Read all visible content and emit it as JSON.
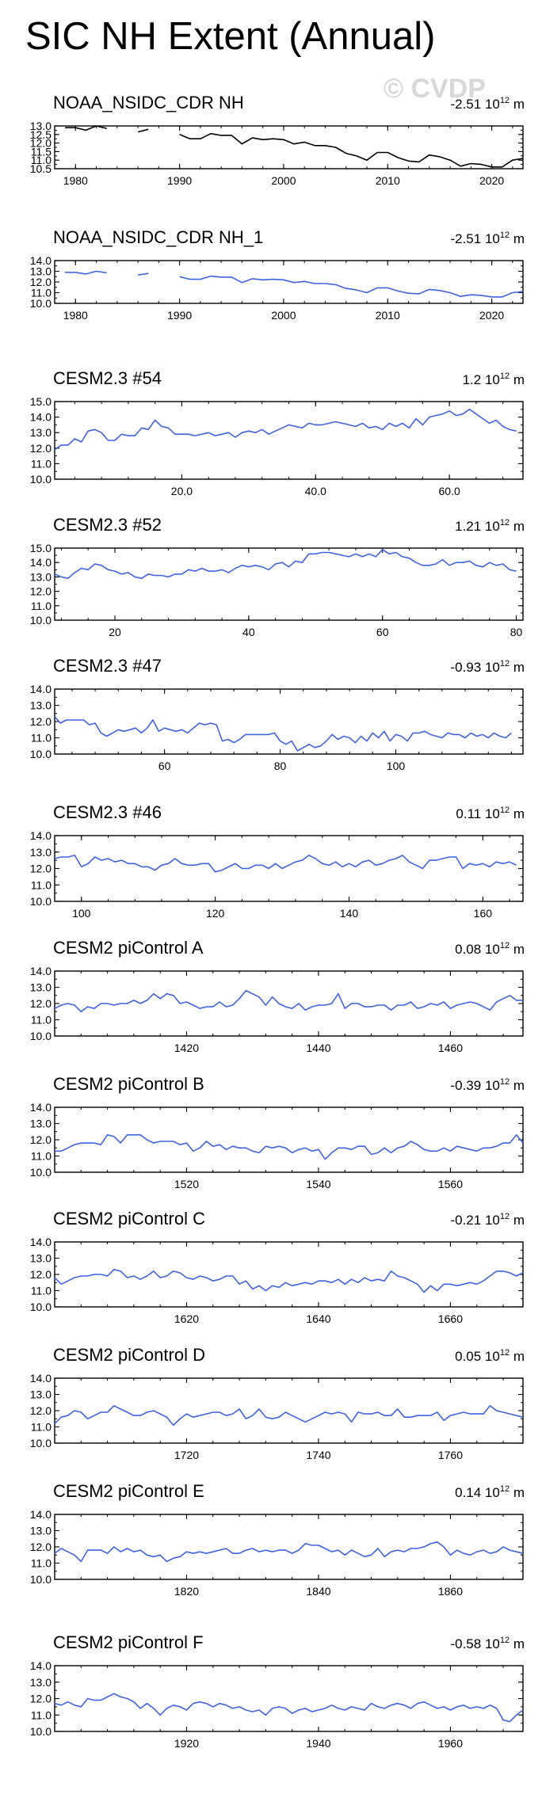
{
  "page": {
    "title": "SIC NH Extent (Annual)",
    "watermark": "© CVDP"
  },
  "chart_data": [
    {
      "type": "line",
      "title": "NOAA_NSIDC_CDR NH",
      "trend": "-2.51",
      "trend_units": "10^12 m^2",
      "color": "#000000",
      "xlim": [
        1978,
        2023
      ],
      "ylim": [
        10.5,
        13.0
      ],
      "yticks": [
        10.5,
        11.0,
        11.5,
        12.0,
        12.5,
        13.0
      ],
      "ytick_labels": [
        "10.5",
        "11.0",
        "11.5",
        "12.0",
        "12.5",
        "13.0"
      ],
      "xticks": [
        1980,
        1990,
        2000,
        2010,
        2020
      ],
      "xtick_labels": [
        "1980",
        "1990",
        "2000",
        "2010",
        "2020"
      ],
      "x_start": 1979,
      "values": [
        12.9,
        12.9,
        12.75,
        13.0,
        12.85,
        null,
        null,
        12.65,
        12.8,
        null,
        null,
        12.5,
        12.25,
        12.25,
        12.55,
        12.45,
        12.45,
        11.95,
        12.3,
        12.2,
        12.25,
        12.2,
        11.95,
        12.05,
        11.85,
        11.85,
        11.75,
        11.4,
        11.25,
        11.0,
        11.45,
        11.45,
        11.15,
        10.95,
        10.9,
        11.3,
        11.2,
        11.0,
        10.65,
        10.8,
        10.75,
        10.6,
        10.6,
        11.0,
        11.1
      ]
    },
    {
      "type": "line",
      "title": "NOAA_NSIDC_CDR NH_1",
      "trend": "-2.51",
      "trend_units": "10^12 m^2",
      "color": "#3f63e0",
      "xlim": [
        1978,
        2023
      ],
      "ylim": [
        10.0,
        14.0
      ],
      "yticks": [
        10.0,
        11.0,
        12.0,
        13.0,
        14.0
      ],
      "ytick_labels": [
        "10.0",
        "11.0",
        "12.0",
        "13.0",
        "14.0"
      ],
      "xticks": [
        1980,
        1990,
        2000,
        2010,
        2020
      ],
      "xtick_labels": [
        "1980",
        "1990",
        "2000",
        "2010",
        "2020"
      ],
      "x_start": 1979,
      "values": [
        12.9,
        12.9,
        12.75,
        13.0,
        12.85,
        null,
        null,
        12.65,
        12.8,
        null,
        null,
        12.5,
        12.25,
        12.25,
        12.55,
        12.45,
        12.45,
        11.95,
        12.3,
        12.2,
        12.25,
        12.2,
        11.95,
        12.05,
        11.85,
        11.85,
        11.75,
        11.4,
        11.25,
        11.0,
        11.45,
        11.45,
        11.15,
        10.95,
        10.9,
        11.3,
        11.2,
        11.0,
        10.65,
        10.8,
        10.75,
        10.6,
        10.6,
        11.0,
        11.1
      ]
    },
    {
      "type": "line",
      "title": "CESM2.3 #54",
      "trend": "1.2",
      "trend_units": "10^12 m^2",
      "color": "#3f63e0",
      "xlim": [
        1,
        71
      ],
      "ylim": [
        10.0,
        15.0
      ],
      "yticks": [
        10.0,
        11.0,
        12.0,
        13.0,
        14.0,
        15.0
      ],
      "ytick_labels": [
        "10.0",
        "11.0",
        "12.0",
        "13.0",
        "14.0",
        "15.0"
      ],
      "xticks": [
        20,
        40,
        60
      ],
      "xtick_labels": [
        "20.0",
        "40.0",
        "60.0"
      ],
      "x_start": 1,
      "values": [
        11.9,
        12.2,
        12.2,
        12.6,
        12.4,
        13.1,
        13.2,
        13.0,
        12.5,
        12.5,
        12.9,
        12.8,
        12.8,
        13.3,
        13.2,
        13.8,
        13.4,
        13.3,
        12.9,
        12.9,
        12.9,
        12.8,
        12.9,
        13.0,
        12.8,
        12.9,
        13.0,
        12.7,
        13.0,
        13.1,
        13.0,
        13.2,
        12.9,
        13.1,
        13.3,
        13.5,
        13.4,
        13.3,
        13.6,
        13.5,
        13.5,
        13.6,
        13.7,
        13.6,
        13.5,
        13.4,
        13.6,
        13.3,
        13.4,
        13.2,
        13.6,
        13.4,
        13.6,
        13.3,
        13.9,
        13.5,
        14.0,
        14.1,
        14.2,
        14.4,
        14.1,
        14.2,
        14.5,
        14.2,
        13.9,
        13.6,
        13.8,
        13.4,
        13.2,
        13.1
      ]
    },
    {
      "type": "line",
      "title": "CESM2.3 #52",
      "trend": "1.21",
      "trend_units": "10^12 m^2",
      "color": "#3f63e0",
      "xlim": [
        11,
        81
      ],
      "ylim": [
        10.0,
        15.0
      ],
      "yticks": [
        10.0,
        11.0,
        12.0,
        13.0,
        14.0,
        15.0
      ],
      "ytick_labels": [
        "10.0",
        "11.0",
        "12.0",
        "13.0",
        "14.0",
        "15.0"
      ],
      "xticks": [
        20,
        40,
        60,
        80
      ],
      "xtick_labels": [
        "20",
        "40",
        "60",
        "80"
      ],
      "x_start": 11,
      "values": [
        13.2,
        13.0,
        12.9,
        13.3,
        13.6,
        13.5,
        13.9,
        13.8,
        13.5,
        13.4,
        13.2,
        13.3,
        13.0,
        12.9,
        13.2,
        13.1,
        13.1,
        13.0,
        13.2,
        13.2,
        13.5,
        13.4,
        13.6,
        13.4,
        13.4,
        13.5,
        13.3,
        13.6,
        13.8,
        13.7,
        13.8,
        13.7,
        13.5,
        13.9,
        14.0,
        13.7,
        14.1,
        14.0,
        14.6,
        14.6,
        14.7,
        14.7,
        14.6,
        14.5,
        14.4,
        14.6,
        14.4,
        14.6,
        14.4,
        14.9,
        14.6,
        14.7,
        14.4,
        14.3,
        14.0,
        13.8,
        13.8,
        13.9,
        14.2,
        13.8,
        14.0,
        14.0,
        14.1,
        13.8,
        13.7,
        14.0,
        13.8,
        13.9,
        13.5,
        13.4
      ]
    },
    {
      "type": "line",
      "title": "CESM2.3 #47",
      "trend": "-0.93",
      "trend_units": "10^12 m^2",
      "color": "#3f63e0",
      "xlim": [
        41,
        122
      ],
      "ylim": [
        10.0,
        14.0
      ],
      "yticks": [
        10.0,
        11.0,
        12.0,
        13.0,
        14.0
      ],
      "ytick_labels": [
        "10.0",
        "11.0",
        "12.0",
        "13.0",
        "14.0"
      ],
      "xticks": [
        60,
        80,
        100
      ],
      "xtick_labels": [
        "60",
        "80",
        "100"
      ],
      "x_start": 41,
      "values": [
        12.3,
        11.9,
        12.1,
        12.1,
        12.1,
        12.1,
        11.8,
        11.9,
        11.3,
        11.1,
        11.3,
        11.5,
        11.4,
        11.5,
        11.6,
        11.3,
        11.6,
        12.1,
        11.4,
        11.6,
        11.5,
        11.4,
        11.5,
        11.3,
        11.6,
        11.9,
        11.8,
        11.9,
        11.8,
        10.8,
        10.9,
        10.7,
        10.9,
        11.2,
        11.2,
        11.2,
        11.2,
        11.2,
        11.3,
        10.8,
        10.6,
        10.8,
        10.2,
        10.4,
        10.6,
        10.4,
        10.5,
        10.8,
        11.2,
        10.9,
        11.1,
        11.0,
        10.7,
        11.1,
        10.8,
        11.3,
        11.0,
        11.4,
        10.8,
        11.2,
        11.1,
        10.8,
        11.3,
        11.3,
        11.4,
        11.2,
        11.1,
        11.0,
        11.3,
        11.2,
        11.2,
        11.0,
        11.3,
        11.1,
        11.2,
        11.0,
        11.3,
        11.1,
        11.0,
        11.3
      ]
    },
    {
      "type": "line",
      "title": "CESM2.3 #46",
      "trend": "0.11",
      "trend_units": "10^12 m^2",
      "color": "#3f63e0",
      "xlim": [
        96,
        166
      ],
      "ylim": [
        10.0,
        14.0
      ],
      "yticks": [
        10.0,
        11.0,
        12.0,
        13.0,
        14.0
      ],
      "ytick_labels": [
        "10.0",
        "11.0",
        "12.0",
        "13.0",
        "14.0"
      ],
      "xticks": [
        100,
        120,
        140,
        160
      ],
      "xtick_labels": [
        "100",
        "120",
        "140",
        "160"
      ],
      "x_start": 96,
      "values": [
        12.6,
        12.7,
        12.7,
        12.8,
        12.1,
        12.3,
        12.7,
        12.5,
        12.6,
        12.4,
        12.5,
        12.3,
        12.3,
        12.1,
        12.1,
        11.9,
        12.2,
        12.3,
        12.6,
        12.3,
        12.2,
        12.2,
        12.3,
        12.3,
        11.8,
        11.9,
        12.1,
        12.3,
        12.0,
        12.0,
        12.2,
        12.2,
        12.0,
        12.3,
        12.0,
        12.2,
        12.4,
        12.5,
        12.8,
        12.6,
        12.3,
        12.2,
        12.4,
        12.1,
        12.3,
        12.1,
        12.4,
        12.5,
        12.2,
        12.3,
        12.5,
        12.6,
        12.8,
        12.4,
        12.2,
        12.0,
        12.5,
        12.5,
        12.6,
        12.7,
        12.7,
        12.0,
        12.3,
        12.2,
        12.3,
        12.1,
        12.4,
        12.3,
        12.4,
        12.2
      ]
    },
    {
      "type": "line",
      "title": "CESM2 piControl A",
      "trend": "0.08",
      "trend_units": "10^12 m^2",
      "color": "#3f63e0",
      "xlim": [
        1400,
        1471
      ],
      "ylim": [
        10.0,
        14.0
      ],
      "yticks": [
        10.0,
        11.0,
        12.0,
        13.0,
        14.0
      ],
      "ytick_labels": [
        "10.0",
        "11.0",
        "12.0",
        "13.0",
        "14.0"
      ],
      "xticks": [
        1420,
        1440,
        1460
      ],
      "xtick_labels": [
        "1420",
        "1440",
        "1460"
      ],
      "x_start": 1400,
      "values": [
        11.7,
        11.9,
        12.0,
        11.9,
        11.5,
        11.8,
        11.7,
        12.0,
        12.0,
        11.9,
        12.0,
        12.0,
        12.2,
        12.0,
        12.2,
        12.6,
        12.3,
        12.6,
        12.5,
        12.0,
        12.1,
        11.9,
        11.7,
        11.8,
        11.8,
        12.1,
        11.8,
        11.9,
        12.3,
        12.8,
        12.6,
        12.4,
        11.9,
        12.4,
        12.0,
        11.8,
        11.7,
        12.0,
        11.6,
        11.8,
        11.9,
        11.9,
        12.0,
        12.6,
        11.7,
        12.0,
        12.0,
        11.8,
        11.8,
        11.9,
        11.9,
        11.6,
        11.9,
        11.9,
        12.1,
        11.7,
        11.8,
        12.0,
        11.9,
        12.1,
        11.7,
        11.9,
        12.0,
        12.1,
        12.0,
        11.8,
        11.6,
        12.1,
        12.3,
        12.5,
        12.2,
        12.2
      ]
    },
    {
      "type": "line",
      "title": "CESM2 piControl B",
      "trend": "-0.39",
      "trend_units": "10^12 m^2",
      "color": "#3f63e0",
      "xlim": [
        1500,
        1571
      ],
      "ylim": [
        10.0,
        14.0
      ],
      "yticks": [
        10.0,
        11.0,
        12.0,
        13.0,
        14.0
      ],
      "ytick_labels": [
        "10.0",
        "11.0",
        "12.0",
        "13.0",
        "14.0"
      ],
      "xticks": [
        1520,
        1540,
        1560
      ],
      "xtick_labels": [
        "1520",
        "1540",
        "1560"
      ],
      "x_start": 1500,
      "values": [
        11.3,
        11.3,
        11.5,
        11.7,
        11.8,
        11.8,
        11.8,
        11.7,
        12.3,
        12.2,
        11.8,
        12.3,
        12.3,
        12.3,
        12.0,
        11.8,
        11.9,
        11.9,
        11.9,
        11.7,
        11.8,
        11.3,
        11.5,
        11.9,
        11.6,
        11.7,
        11.4,
        11.6,
        11.5,
        11.5,
        11.3,
        11.2,
        11.6,
        11.5,
        11.6,
        11.5,
        11.2,
        11.4,
        11.5,
        11.3,
        11.4,
        10.8,
        11.2,
        11.5,
        11.5,
        11.4,
        11.6,
        11.6,
        11.1,
        11.2,
        11.5,
        11.2,
        11.5,
        11.6,
        11.9,
        11.7,
        11.4,
        11.3,
        11.3,
        11.5,
        11.3,
        11.6,
        11.5,
        11.4,
        11.3,
        11.5,
        11.5,
        11.6,
        11.8,
        11.8,
        12.3,
        11.8
      ]
    },
    {
      "type": "line",
      "title": "CESM2 piControl C",
      "trend": "-0.21",
      "trend_units": "10^12 m^2",
      "color": "#3f63e0",
      "xlim": [
        1600,
        1671
      ],
      "ylim": [
        10.0,
        14.0
      ],
      "yticks": [
        10.0,
        11.0,
        12.0,
        13.0,
        14.0
      ],
      "ytick_labels": [
        "10.0",
        "11.0",
        "12.0",
        "13.0",
        "14.0"
      ],
      "xticks": [
        1620,
        1640,
        1660
      ],
      "xtick_labels": [
        "1620",
        "1640",
        "1660"
      ],
      "x_start": 1600,
      "values": [
        11.8,
        11.4,
        11.6,
        11.8,
        11.9,
        11.9,
        12.0,
        12.0,
        11.9,
        12.3,
        12.2,
        11.8,
        11.9,
        11.7,
        11.9,
        12.2,
        11.8,
        11.9,
        12.2,
        12.1,
        11.8,
        11.7,
        11.9,
        11.8,
        11.6,
        11.7,
        11.9,
        11.9,
        11.4,
        11.6,
        11.1,
        11.3,
        11.0,
        11.3,
        11.2,
        11.5,
        11.3,
        11.4,
        11.5,
        11.4,
        11.6,
        11.6,
        11.5,
        11.7,
        11.4,
        11.7,
        11.5,
        11.8,
        11.6,
        11.7,
        11.6,
        12.2,
        11.9,
        11.8,
        11.6,
        11.4,
        10.9,
        11.3,
        11.0,
        11.4,
        11.4,
        11.3,
        11.4,
        11.5,
        11.4,
        11.6,
        11.9,
        12.2,
        12.2,
        12.1,
        11.9,
        12.1
      ]
    },
    {
      "type": "line",
      "title": "CESM2 piControl D",
      "trend": "0.05",
      "trend_units": "10^12 m^2",
      "color": "#3f63e0",
      "xlim": [
        1700,
        1771
      ],
      "ylim": [
        10.0,
        14.0
      ],
      "yticks": [
        10.0,
        11.0,
        12.0,
        13.0,
        14.0
      ],
      "ytick_labels": [
        "10.0",
        "11.0",
        "12.0",
        "13.0",
        "14.0"
      ],
      "xticks": [
        1720,
        1740,
        1760
      ],
      "xtick_labels": [
        "1720",
        "1740",
        "1760"
      ],
      "x_start": 1700,
      "values": [
        11.2,
        11.6,
        11.7,
        12.0,
        11.9,
        11.5,
        11.7,
        11.9,
        11.9,
        12.3,
        12.1,
        11.9,
        11.7,
        11.7,
        11.9,
        12.0,
        11.8,
        11.6,
        11.1,
        11.5,
        11.8,
        11.6,
        11.7,
        11.8,
        11.9,
        11.9,
        11.7,
        11.8,
        12.1,
        11.5,
        11.7,
        12.1,
        11.6,
        11.5,
        11.6,
        11.9,
        11.7,
        11.5,
        11.3,
        11.5,
        11.7,
        11.9,
        11.8,
        11.9,
        11.8,
        11.3,
        11.9,
        11.8,
        11.8,
        11.9,
        11.7,
        11.7,
        12.1,
        11.6,
        11.6,
        11.7,
        11.7,
        11.7,
        11.9,
        11.4,
        11.7,
        11.8,
        11.9,
        11.8,
        11.8,
        11.8,
        12.3,
        12.0,
        11.9,
        11.8,
        11.7,
        11.6
      ]
    },
    {
      "type": "line",
      "title": "CESM2 piControl E",
      "trend": "0.14",
      "trend_units": "10^12 m^2",
      "color": "#3f63e0",
      "xlim": [
        1800,
        1871
      ],
      "ylim": [
        10.0,
        14.0
      ],
      "yticks": [
        10.0,
        11.0,
        12.0,
        13.0,
        14.0
      ],
      "ytick_labels": [
        "10.0",
        "11.0",
        "12.0",
        "13.0",
        "14.0"
      ],
      "xticks": [
        1820,
        1840,
        1860
      ],
      "xtick_labels": [
        "1820",
        "1840",
        "1860"
      ],
      "x_start": 1800,
      "values": [
        11.6,
        11.9,
        11.7,
        11.5,
        11.1,
        11.8,
        11.8,
        11.8,
        11.6,
        12.0,
        11.7,
        11.9,
        11.7,
        11.8,
        11.5,
        11.4,
        11.5,
        11.1,
        11.3,
        11.4,
        11.7,
        11.6,
        11.7,
        11.6,
        11.7,
        11.8,
        11.9,
        11.6,
        11.6,
        11.8,
        11.9,
        11.7,
        11.8,
        11.7,
        11.8,
        11.8,
        11.6,
        11.8,
        12.2,
        12.1,
        12.1,
        11.9,
        11.7,
        11.8,
        11.5,
        11.8,
        11.6,
        11.4,
        11.5,
        11.9,
        11.4,
        11.7,
        11.8,
        11.7,
        11.9,
        11.9,
        12.0,
        12.2,
        12.3,
        12.0,
        11.5,
        11.8,
        11.6,
        11.5,
        11.7,
        11.8,
        11.6,
        11.7,
        12.0,
        11.8,
        11.7,
        11.6
      ]
    },
    {
      "type": "line",
      "title": "CESM2 piControl F",
      "trend": "-0.58",
      "trend_units": "10^12 m^2",
      "color": "#3f63e0",
      "xlim": [
        1900,
        1971
      ],
      "ylim": [
        10.0,
        14.0
      ],
      "yticks": [
        10.0,
        11.0,
        12.0,
        13.0,
        14.0
      ],
      "ytick_labels": [
        "10.0",
        "11.0",
        "12.0",
        "13.0",
        "14.0"
      ],
      "xticks": [
        1920,
        1940,
        1960
      ],
      "xtick_labels": [
        "1920",
        "1940",
        "1960"
      ],
      "x_start": 1900,
      "values": [
        11.7,
        11.6,
        11.8,
        11.6,
        11.5,
        12.0,
        11.9,
        11.9,
        12.1,
        12.3,
        12.1,
        12.0,
        11.8,
        11.4,
        11.7,
        11.4,
        11.0,
        11.4,
        11.6,
        11.5,
        11.3,
        11.7,
        11.8,
        11.7,
        11.5,
        11.7,
        11.6,
        11.4,
        11.5,
        11.3,
        11.2,
        11.3,
        11.0,
        11.4,
        11.5,
        11.4,
        11.1,
        11.3,
        11.4,
        11.2,
        11.3,
        11.4,
        11.6,
        11.4,
        11.3,
        11.5,
        11.4,
        11.3,
        11.7,
        11.5,
        11.4,
        11.6,
        11.7,
        11.6,
        11.4,
        11.7,
        11.8,
        11.6,
        11.4,
        11.5,
        11.3,
        11.5,
        11.6,
        11.4,
        11.5,
        11.4,
        11.6,
        11.4,
        10.7,
        10.6,
        11.0,
        11.3
      ]
    }
  ]
}
